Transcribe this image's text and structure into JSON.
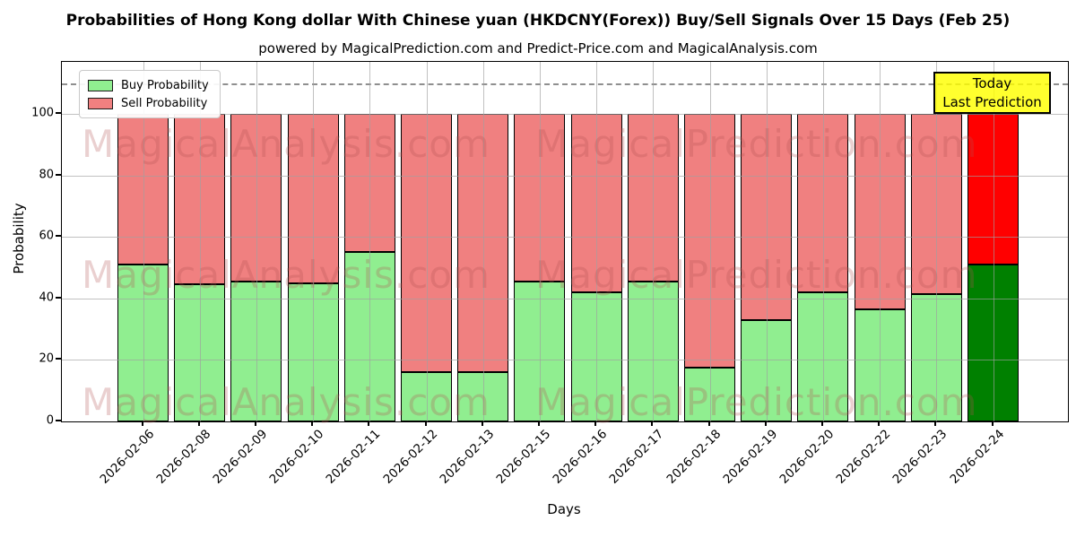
{
  "title": "Probabilities of Hong Kong dollar With Chinese yuan (HKDCNY(Forex)) Buy/Sell Signals Over 15 Days (Feb 25)",
  "subtitle": "powered by MagicalPrediction.com and Predict-Price.com and MagicalAnalysis.com",
  "axes": {
    "x_label": "Days",
    "y_label": "Probability",
    "y_ticks": [
      0,
      20,
      40,
      60,
      80,
      100
    ],
    "ylim": [
      0,
      117
    ],
    "dashed_line_y": 110,
    "grid": true
  },
  "legend": {
    "position": "upper-left",
    "items": [
      {
        "label": "Buy Probability",
        "color": "#90ee90"
      },
      {
        "label": "Sell Probability",
        "color": "#f08080"
      }
    ]
  },
  "annotation": {
    "line1": "Today",
    "line2": "Last Prediction",
    "bg_color": "#ffff00"
  },
  "watermarks": {
    "left": "MagicalAnalysis.com",
    "right": "MagicalPrediction.com"
  },
  "chart_data": {
    "type": "bar",
    "stacked": true,
    "title": "Probabilities of Hong Kong dollar With Chinese yuan (HKDCNY(Forex)) Buy/Sell Signals Over 15 Days (Feb 25)",
    "xlabel": "Days",
    "ylabel": "Probability",
    "ylim": [
      0,
      117
    ],
    "legend_position": "upper-left",
    "categories": [
      "2026-02-06",
      "2026-02-08",
      "2026-02-09",
      "2026-02-10",
      "2026-02-11",
      "2026-02-12",
      "2026-02-13",
      "2026-02-15",
      "2026-02-16",
      "2026-02-17",
      "2026-02-18",
      "2026-02-19",
      "2026-02-20",
      "2026-02-22",
      "2026-02-23",
      "2026-02-24"
    ],
    "series": [
      {
        "name": "Buy Probability",
        "color": "#90ee90",
        "values": [
          51,
          44.5,
          45.5,
          45,
          55,
          16,
          16,
          45.5,
          42,
          45.5,
          17.5,
          33,
          42,
          36.5,
          41.5,
          51
        ]
      },
      {
        "name": "Sell Probability",
        "color": "#f08080",
        "values": [
          49,
          55.5,
          54.5,
          55,
          45,
          84,
          84,
          54.5,
          58,
          54.5,
          82.5,
          67,
          58,
          63.5,
          58.5,
          49
        ]
      }
    ],
    "bar_total": 100,
    "today_index": 15,
    "today_colors": {
      "buy": "#008000",
      "sell": "#ff0000"
    },
    "bar_edge_color": "#000000"
  }
}
